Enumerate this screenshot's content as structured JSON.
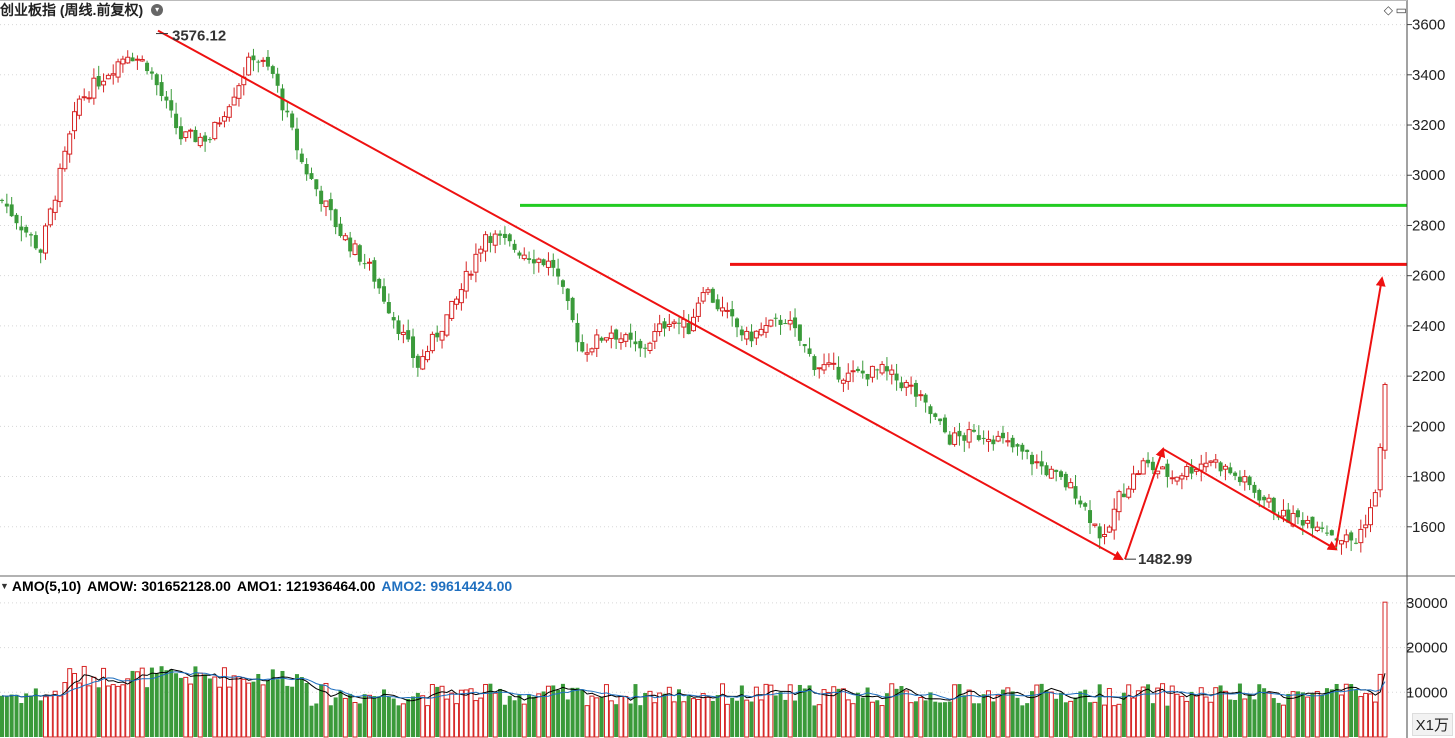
{
  "title": "创业板指 (周线.前复权)",
  "indicator": {
    "name": "AMO(5,10)",
    "amow_label": "AMOW: 301652128.00",
    "amo1_label": "AMO1: 121936464.00",
    "amo2_label": "AMO2: 99614424.00",
    "scale": "X1万"
  },
  "colors": {
    "up": "#d62424",
    "down": "#3a9a3a",
    "amo1": "#000000",
    "amo2": "#1f6fbf",
    "resistance_green": "#22cc22",
    "resistance_red": "#ee1111",
    "trend": "#ee1111"
  },
  "chart_data": {
    "type": "candlestick",
    "price_axis": {
      "min": 1400,
      "max": 3650,
      "ticks": [
        3600,
        3400,
        3200,
        3000,
        2800,
        2600,
        2400,
        2200,
        2000,
        1800,
        1600
      ]
    },
    "volume_axis": {
      "min": 0,
      "max": 31500,
      "ticks": [
        30000,
        20000,
        10000
      ],
      "unit": "X1万"
    },
    "annotations": {
      "high": {
        "label": "3576.12",
        "value": 3576.12
      },
      "low": {
        "label": "1482.99",
        "value": 1482.99
      },
      "green_level": 2880,
      "red_level": 2645
    },
    "anchors": [
      [
        0,
        2900
      ],
      [
        8,
        2700
      ],
      [
        16,
        3300
      ],
      [
        26,
        3490
      ],
      [
        30,
        3440
      ],
      [
        37,
        3150
      ],
      [
        43,
        3150
      ],
      [
        52,
        3480
      ],
      [
        56,
        3400
      ],
      [
        62,
        3050
      ],
      [
        70,
        2770
      ],
      [
        76,
        2630
      ],
      [
        86,
        2240
      ],
      [
        94,
        2500
      ],
      [
        100,
        2770
      ],
      [
        107,
        2700
      ],
      [
        114,
        2640
      ],
      [
        120,
        2300
      ],
      [
        126,
        2380
      ],
      [
        132,
        2300
      ],
      [
        138,
        2430
      ],
      [
        142,
        2390
      ],
      [
        145,
        2560
      ],
      [
        148,
        2480
      ],
      [
        154,
        2350
      ],
      [
        162,
        2430
      ],
      [
        168,
        2250
      ],
      [
        175,
        2200
      ],
      [
        182,
        2220
      ],
      [
        188,
        2150
      ],
      [
        196,
        1950
      ],
      [
        204,
        1970
      ],
      [
        212,
        1880
      ],
      [
        222,
        1740
      ],
      [
        228,
        1540
      ],
      [
        231,
        1720
      ],
      [
        236,
        1850
      ],
      [
        242,
        1800
      ],
      [
        250,
        1870
      ],
      [
        258,
        1760
      ],
      [
        265,
        1640
      ],
      [
        272,
        1620
      ],
      [
        276,
        1560
      ],
      [
        280,
        1540
      ],
      [
        284,
        1720
      ],
      [
        286,
        2150
      ]
    ],
    "candle_count": 287
  }
}
